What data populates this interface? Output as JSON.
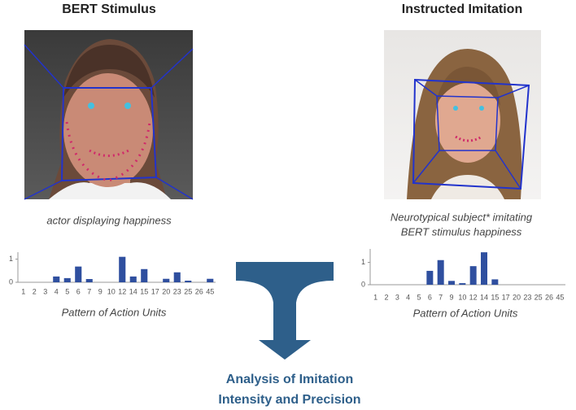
{
  "panels": [
    {
      "title": "BERT Stimulus",
      "caption": [
        "actor displaying happiness"
      ],
      "chart_caption": "Pattern of Action Units"
    },
    {
      "title": "Instructed Imitation",
      "caption": [
        "Neurotypical subject* imitating",
        "BERT stimulus happiness"
      ],
      "chart_caption": "Pattern of Action Units"
    }
  ],
  "chart_data": [
    {
      "type": "bar",
      "categories": [
        "1",
        "2",
        "3",
        "4",
        "5",
        "6",
        "7",
        "9",
        "10",
        "12",
        "14",
        "15",
        "17",
        "20",
        "23",
        "25",
        "26",
        "45"
      ],
      "values": [
        0,
        0,
        0,
        0.25,
        0.18,
        0.68,
        0.14,
        0,
        0,
        1.1,
        0.25,
        0.57,
        0,
        0.15,
        0.43,
        0.07,
        0,
        0.15
      ],
      "color": "#2f4f9f",
      "ylim": [
        0,
        1.3
      ],
      "yticks": [
        0,
        1
      ]
    },
    {
      "type": "bar",
      "categories": [
        "1",
        "2",
        "3",
        "4",
        "5",
        "6",
        "7",
        "9",
        "10",
        "12",
        "14",
        "15",
        "17",
        "20",
        "23",
        "25",
        "26",
        "45"
      ],
      "values": [
        0,
        0,
        0,
        0,
        0,
        0.62,
        1.1,
        0.17,
        0.07,
        0.83,
        1.45,
        0.24,
        0,
        0,
        0,
        0,
        0,
        0
      ],
      "color": "#2f4f9f",
      "ylim": [
        0,
        1.6
      ],
      "yticks": [
        0,
        1
      ]
    }
  ],
  "conclusion": [
    "Analysis of Imitation",
    "Intensity and Precision"
  ]
}
